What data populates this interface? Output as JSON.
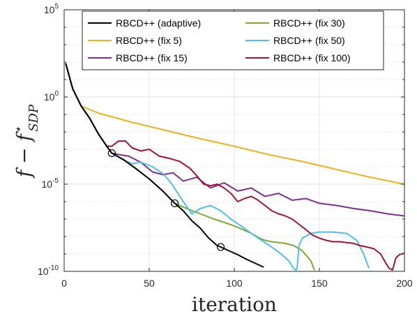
{
  "chart_data": {
    "type": "line",
    "xlabel": "iteration",
    "ylabel": "f − f*SDP",
    "xlim": [
      0,
      200
    ],
    "ylim": [
      1e-10,
      100000
    ],
    "yscale": "log",
    "grid": true,
    "legend_position": "top",
    "x_ticks": [
      0,
      50,
      100,
      150,
      200
    ],
    "x_tick_labels": [
      "0",
      "50",
      "100",
      "150",
      "200"
    ],
    "y_ticks": [
      1e-10,
      1e-05,
      1,
      100000
    ],
    "y_tick_labels": [
      {
        "base": "10",
        "exp": "-10"
      },
      {
        "base": "10",
        "exp": "-5"
      },
      {
        "base": "10",
        "exp": "0"
      },
      {
        "base": "10",
        "exp": "5"
      }
    ],
    "series": [
      {
        "name": "RBCD++ (adaptive)",
        "color": "#000000",
        "x": [
          1,
          5,
          10,
          15,
          20,
          25,
          28,
          35,
          42,
          50,
          58,
          65,
          70,
          75,
          80,
          85,
          90,
          92,
          97,
          102,
          107,
          112,
          117
        ],
        "y": [
          80,
          3,
          0.3,
          0.06,
          0.008,
          0.0015,
          0.0006,
          0.00025,
          8e-05,
          2e-05,
          4e-06,
          8e-07,
          3e-07,
          8e-08,
          3e-08,
          8e-09,
          3e-09,
          2.5e-09,
          1.5e-09,
          9e-10,
          5e-10,
          3e-10,
          1.8e-10
        ],
        "markers_at_x": [
          28,
          65,
          92
        ]
      },
      {
        "name": "RBCD++ (fix 5)",
        "color": "#EDB120",
        "x": [
          1,
          5,
          10,
          20,
          40,
          60,
          80,
          100,
          120,
          140,
          160,
          180,
          200
        ],
        "y": [
          80,
          3,
          0.3,
          0.12,
          0.035,
          0.012,
          0.004,
          0.0015,
          0.0005,
          0.0002,
          7e-05,
          2.5e-05,
          1e-05
        ]
      },
      {
        "name": "RBCD++ (fix 15)",
        "color": "#7E2F8E",
        "x": [
          1,
          5,
          10,
          15,
          20,
          25,
          28,
          32,
          38,
          45,
          52,
          58,
          64,
          70,
          78,
          86,
          94,
          102,
          110,
          118,
          126,
          134,
          142,
          150,
          160,
          170,
          180,
          190,
          200
        ],
        "y": [
          80,
          3,
          0.3,
          0.06,
          0.008,
          0.0015,
          0.0006,
          0.0005,
          0.0004,
          0.00018,
          5e-05,
          3.5e-05,
          4.5e-05,
          1.5e-05,
          2.5e-05,
          6e-06,
          1.2e-05,
          4e-06,
          6e-06,
          2e-06,
          3e-06,
          1.2e-06,
          1.5e-06,
          8e-07,
          6e-07,
          4e-07,
          3e-07,
          2e-07,
          1.5e-07
        ]
      },
      {
        "name": "RBCD++ (fix 30)",
        "color": "#77AC30",
        "x": [
          1,
          5,
          10,
          15,
          20,
          25,
          28,
          35,
          42,
          50,
          58,
          65,
          72,
          80,
          88,
          95,
          100,
          105,
          110,
          115,
          118,
          122,
          126,
          130,
          135,
          140,
          145,
          147
        ],
        "y": [
          80,
          3,
          0.3,
          0.06,
          0.008,
          0.0015,
          0.0006,
          0.00025,
          8e-05,
          2e-05,
          4e-06,
          8e-07,
          4e-07,
          2e-07,
          1e-07,
          6e-08,
          4e-08,
          2.5e-08,
          1.5e-08,
          8e-09,
          6e-09,
          5e-09,
          4.5e-09,
          4e-09,
          3e-09,
          1.5e-09,
          4e-10,
          1.2e-10
        ]
      },
      {
        "name": "RBCD++ (fix 50)",
        "color": "#4DBEEE",
        "x": [
          1,
          5,
          10,
          15,
          20,
          25,
          28,
          35,
          40,
          45,
          52,
          58,
          62,
          66,
          70,
          75,
          80,
          86,
          92,
          98,
          104,
          110,
          116,
          122,
          128,
          132,
          134,
          135,
          136,
          136.5,
          137,
          138,
          140,
          145,
          150,
          158,
          166,
          172,
          176,
          178,
          179
        ],
        "y": [
          80,
          3,
          0.3,
          0.06,
          0.008,
          0.0015,
          0.0006,
          0.00025,
          0.00015,
          0.00018,
          0.0001,
          4e-05,
          1.5e-05,
          4e-06,
          1e-06,
          2e-07,
          4e-07,
          6e-07,
          3e-07,
          1e-07,
          4e-08,
          1.5e-08,
          6e-09,
          2.5e-09,
          9e-10,
          4e-10,
          2e-10,
          1.4e-10,
          1.2e-10,
          1.2e-10,
          2e-10,
          3e-09,
          8e-09,
          1.5e-08,
          1.8e-08,
          1.8e-08,
          1.5e-08,
          6e-09,
          1e-09,
          3e-10,
          1.6e-10
        ]
      },
      {
        "name": "RBCD++ (fix 100)",
        "color": "#A2142F",
        "x": [
          1,
          5,
          10,
          15,
          20,
          25,
          28,
          32,
          36,
          40,
          45,
          50,
          56,
          62,
          68,
          74,
          78,
          82,
          86,
          90,
          94,
          98,
          102,
          106,
          110,
          114,
          118,
          122,
          126,
          130,
          134,
          138,
          142,
          146,
          150,
          154,
          158,
          162,
          166,
          170,
          174,
          178,
          182,
          186,
          189,
          191,
          193,
          195,
          197,
          200
        ],
        "y": [
          80,
          3,
          0.3,
          0.06,
          0.008,
          0.0015,
          0.0015,
          0.003,
          0.003,
          0.0012,
          0.0008,
          0.001,
          0.0004,
          0.0003,
          0.0002,
          8e-05,
          3e-05,
          1e-05,
          8e-06,
          1e-05,
          6e-06,
          3e-06,
          1e-06,
          1.5e-06,
          2e-06,
          1.2e-06,
          6e-07,
          3e-07,
          2e-07,
          1.5e-07,
          1e-07,
          5e-08,
          2.5e-08,
          1.2e-08,
          8e-09,
          6e-09,
          5e-09,
          5e-09,
          4.5e-09,
          4e-09,
          3e-09,
          2.5e-09,
          2e-09,
          1e-09,
          3e-10,
          1.5e-10,
          1.2e-10,
          6e-10,
          9e-10,
          1.1e-09
        ]
      }
    ]
  }
}
